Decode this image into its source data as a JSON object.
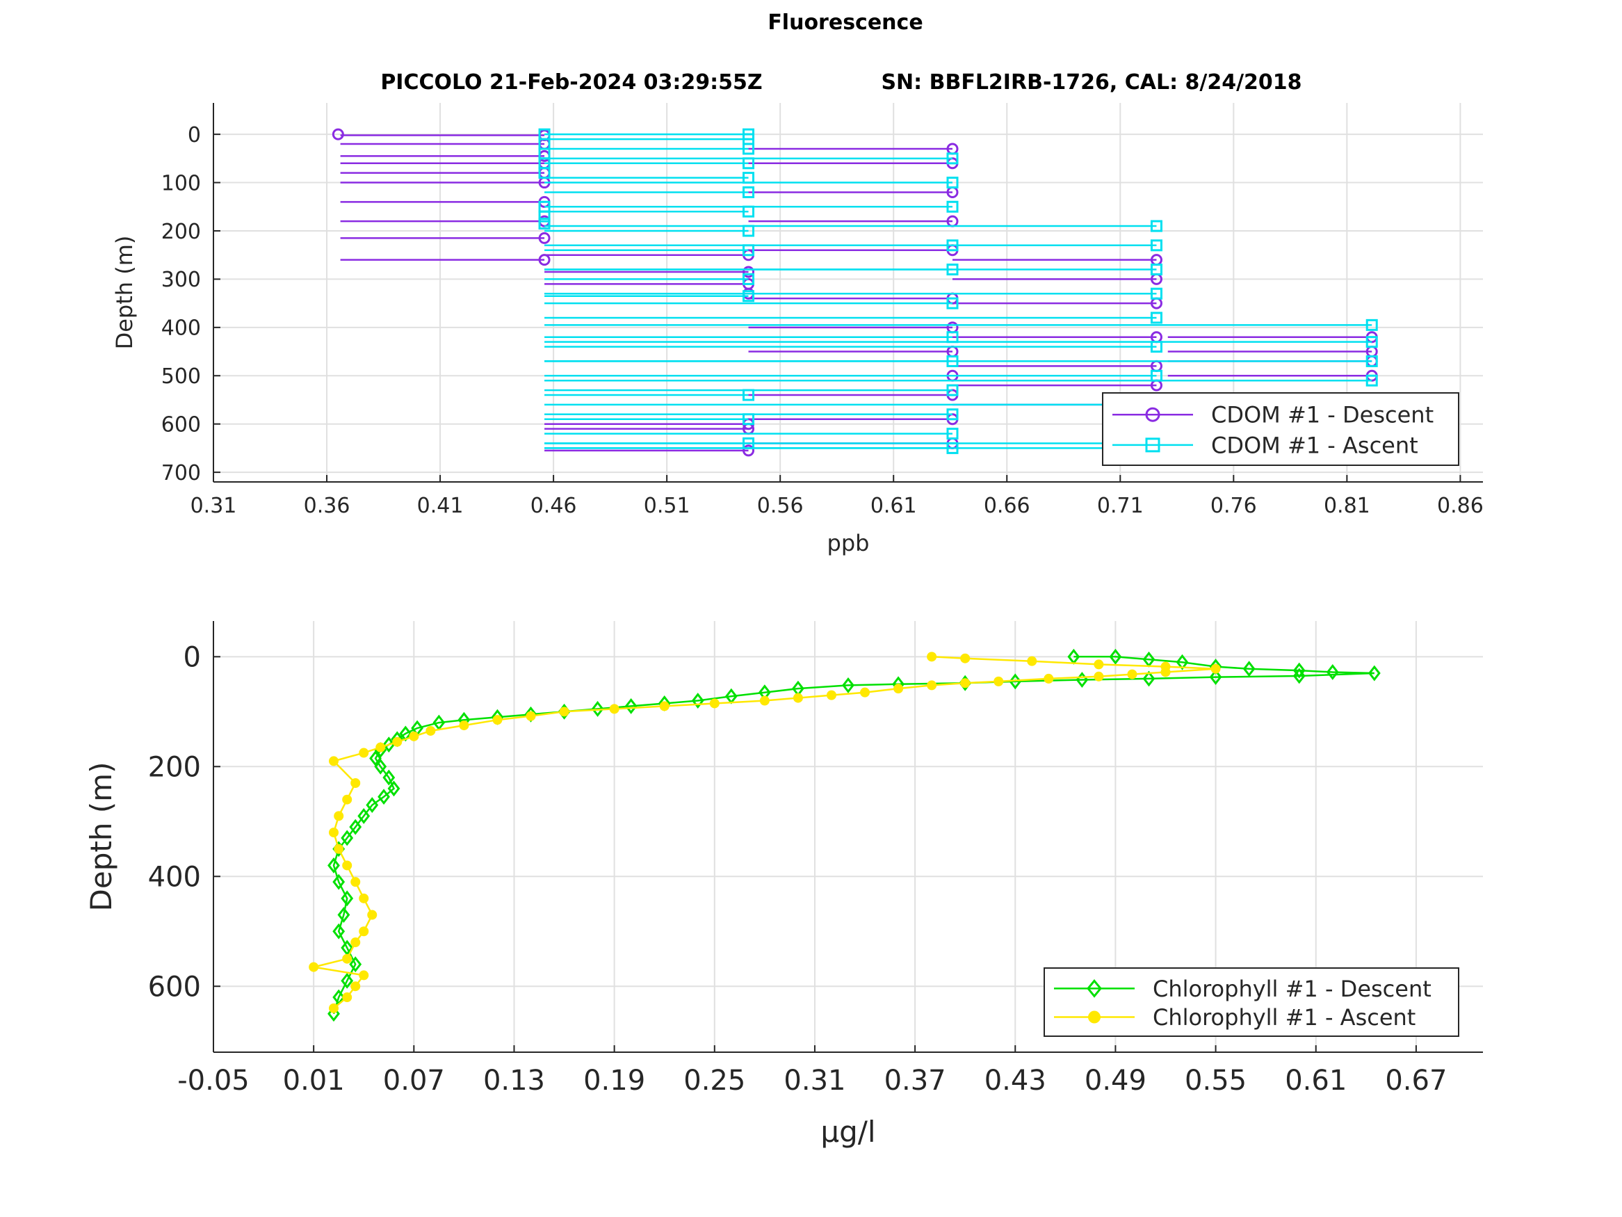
{
  "figure": {
    "title": "Fluorescence",
    "subtitle_left": "PICCOLO 21-Feb-2024 03:29:55Z",
    "subtitle_right": "SN: BBFL2IRB-1726, CAL: 8/24/2018"
  },
  "chart_data": [
    {
      "type": "line",
      "xlabel": "ppb",
      "ylabel": "Depth (m)",
      "xlim": [
        0.31,
        0.87
      ],
      "ylim": [
        -65,
        720
      ],
      "y_reversed": true,
      "xticks": [
        0.31,
        0.36,
        0.41,
        0.46,
        0.51,
        0.56,
        0.61,
        0.66,
        0.71,
        0.76,
        0.81,
        0.86
      ],
      "xtick_labels": [
        "0.31",
        "0.36",
        "0.41",
        "0.46",
        "0.51",
        "0.56",
        "0.61",
        "0.66",
        "0.71",
        "0.76",
        "0.81",
        "0.86"
      ],
      "yticks": [
        0,
        100,
        200,
        300,
        400,
        500,
        600,
        700
      ],
      "ytick_labels": [
        "0",
        "100",
        "200",
        "300",
        "400",
        "500",
        "600",
        "700"
      ],
      "grid": true,
      "legend_position": "bottom-right",
      "step_plot": true,
      "series": [
        {
          "name": "CDOM #1 - Descent",
          "color": "#8a2be2",
          "marker": "circle",
          "points": [
            [
              0.365,
              0
            ],
            [
              0.456,
              2
            ],
            [
              0.456,
              20
            ],
            [
              0.456,
              45
            ],
            [
              0.456,
              60
            ],
            [
              0.456,
              80
            ],
            [
              0.456,
              100
            ],
            [
              0.456,
              140
            ],
            [
              0.456,
              180
            ],
            [
              0.456,
              215
            ],
            [
              0.456,
              260
            ],
            [
              0.546,
              250
            ],
            [
              0.546,
              285
            ],
            [
              0.546,
              310
            ],
            [
              0.546,
              330
            ],
            [
              0.636,
              30
            ],
            [
              0.636,
              60
            ],
            [
              0.636,
              120
            ],
            [
              0.636,
              180
            ],
            [
              0.636,
              240
            ],
            [
              0.636,
              340
            ],
            [
              0.636,
              400
            ],
            [
              0.636,
              450
            ],
            [
              0.636,
              500
            ],
            [
              0.636,
              540
            ],
            [
              0.636,
              590
            ],
            [
              0.636,
              640
            ],
            [
              0.726,
              260
            ],
            [
              0.726,
              300
            ],
            [
              0.726,
              350
            ],
            [
              0.726,
              420
            ],
            [
              0.726,
              480
            ],
            [
              0.726,
              520
            ],
            [
              0.726,
              560
            ],
            [
              0.821,
              420
            ],
            [
              0.821,
              450
            ],
            [
              0.821,
              470
            ],
            [
              0.821,
              500
            ],
            [
              0.821,
              580
            ],
            [
              0.821,
              620
            ],
            [
              0.546,
              600
            ],
            [
              0.546,
              610
            ],
            [
              0.546,
              655
            ]
          ]
        },
        {
          "name": "CDOM #1 - Ascent",
          "color": "#00e0f0",
          "marker": "square",
          "points": [
            [
              0.456,
              0
            ],
            [
              0.456,
              20
            ],
            [
              0.456,
              40
            ],
            [
              0.456,
              60
            ],
            [
              0.456,
              80
            ],
            [
              0.456,
              150
            ],
            [
              0.456,
              170
            ],
            [
              0.456,
              185
            ],
            [
              0.546,
              0
            ],
            [
              0.546,
              10
            ],
            [
              0.546,
              30
            ],
            [
              0.546,
              60
            ],
            [
              0.546,
              90
            ],
            [
              0.546,
              120
            ],
            [
              0.546,
              160
            ],
            [
              0.546,
              200
            ],
            [
              0.546,
              240
            ],
            [
              0.546,
              300
            ],
            [
              0.546,
              335
            ],
            [
              0.546,
              540
            ],
            [
              0.546,
              590
            ],
            [
              0.546,
              640
            ],
            [
              0.636,
              50
            ],
            [
              0.636,
              100
            ],
            [
              0.636,
              150
            ],
            [
              0.636,
              230
            ],
            [
              0.636,
              280
            ],
            [
              0.636,
              350
            ],
            [
              0.636,
              420
            ],
            [
              0.636,
              470
            ],
            [
              0.636,
              530
            ],
            [
              0.636,
              580
            ],
            [
              0.636,
              620
            ],
            [
              0.636,
              650
            ],
            [
              0.726,
              190
            ],
            [
              0.726,
              230
            ],
            [
              0.726,
              280
            ],
            [
              0.726,
              330
            ],
            [
              0.726,
              380
            ],
            [
              0.726,
              440
            ],
            [
              0.726,
              500
            ],
            [
              0.726,
              560
            ],
            [
              0.726,
              640
            ],
            [
              0.821,
              395
            ],
            [
              0.821,
              430
            ],
            [
              0.821,
              470
            ],
            [
              0.821,
              510
            ],
            [
              0.821,
              650
            ]
          ]
        }
      ]
    },
    {
      "type": "line",
      "xlabel": "μg/l",
      "ylabel": "Depth (m)",
      "xlim": [
        -0.05,
        0.71
      ],
      "ylim": [
        -65,
        720
      ],
      "y_reversed": true,
      "xticks": [
        -0.05,
        0.01,
        0.07,
        0.13,
        0.19,
        0.25,
        0.31,
        0.37,
        0.43,
        0.49,
        0.55,
        0.61,
        0.67
      ],
      "xtick_labels": [
        "-0.05",
        "0.01",
        "0.07",
        "0.13",
        "0.19",
        "0.25",
        "0.31",
        "0.37",
        "0.43",
        "0.49",
        "0.55",
        "0.61",
        "0.67"
      ],
      "yticks": [
        0,
        200,
        400,
        600
      ],
      "ytick_labels": [
        "0",
        "200",
        "400",
        "600"
      ],
      "grid": true,
      "legend_position": "bottom-right",
      "series": [
        {
          "name": "Chlorophyll #1 - Descent",
          "color": "#00e000",
          "marker": "diamond",
          "points": [
            [
              0.465,
              0
            ],
            [
              0.49,
              0
            ],
            [
              0.51,
              5
            ],
            [
              0.53,
              10
            ],
            [
              0.55,
              18
            ],
            [
              0.57,
              22
            ],
            [
              0.6,
              25
            ],
            [
              0.62,
              28
            ],
            [
              0.645,
              30
            ],
            [
              0.6,
              35
            ],
            [
              0.55,
              37
            ],
            [
              0.51,
              40
            ],
            [
              0.47,
              42
            ],
            [
              0.43,
              45
            ],
            [
              0.4,
              48
            ],
            [
              0.36,
              50
            ],
            [
              0.33,
              52
            ],
            [
              0.3,
              58
            ],
            [
              0.28,
              65
            ],
            [
              0.26,
              72
            ],
            [
              0.24,
              80
            ],
            [
              0.22,
              85
            ],
            [
              0.2,
              90
            ],
            [
              0.18,
              95
            ],
            [
              0.16,
              100
            ],
            [
              0.14,
              105
            ],
            [
              0.12,
              110
            ],
            [
              0.1,
              115
            ],
            [
              0.085,
              120
            ],
            [
              0.072,
              130
            ],
            [
              0.065,
              140
            ],
            [
              0.06,
              150
            ],
            [
              0.055,
              160
            ],
            [
              0.05,
              170
            ],
            [
              0.047,
              185
            ],
            [
              0.05,
              200
            ],
            [
              0.055,
              220
            ],
            [
              0.058,
              240
            ],
            [
              0.052,
              255
            ],
            [
              0.045,
              270
            ],
            [
              0.04,
              290
            ],
            [
              0.035,
              310
            ],
            [
              0.03,
              330
            ],
            [
              0.025,
              350
            ],
            [
              0.022,
              380
            ],
            [
              0.025,
              410
            ],
            [
              0.03,
              440
            ],
            [
              0.028,
              470
            ],
            [
              0.025,
              500
            ],
            [
              0.03,
              530
            ],
            [
              0.035,
              560
            ],
            [
              0.03,
              590
            ],
            [
              0.025,
              620
            ],
            [
              0.022,
              650
            ]
          ]
        },
        {
          "name": "Chlorophyll #1 - Ascent",
          "color": "#ffe800",
          "marker": "asterisk",
          "points": [
            [
              0.022,
              640
            ],
            [
              0.03,
              620
            ],
            [
              0.035,
              600
            ],
            [
              0.04,
              580
            ],
            [
              0.01,
              565
            ],
            [
              0.03,
              550
            ],
            [
              0.035,
              520
            ],
            [
              0.04,
              500
            ],
            [
              0.045,
              470
            ],
            [
              0.04,
              440
            ],
            [
              0.035,
              410
            ],
            [
              0.03,
              380
            ],
            [
              0.025,
              350
            ],
            [
              0.022,
              320
            ],
            [
              0.025,
              290
            ],
            [
              0.03,
              260
            ],
            [
              0.035,
              230
            ],
            [
              0.022,
              190
            ],
            [
              0.04,
              175
            ],
            [
              0.05,
              165
            ],
            [
              0.06,
              155
            ],
            [
              0.07,
              145
            ],
            [
              0.08,
              135
            ],
            [
              0.1,
              125
            ],
            [
              0.12,
              115
            ],
            [
              0.14,
              108
            ],
            [
              0.16,
              100
            ],
            [
              0.19,
              95
            ],
            [
              0.22,
              90
            ],
            [
              0.25,
              85
            ],
            [
              0.28,
              80
            ],
            [
              0.3,
              75
            ],
            [
              0.32,
              70
            ],
            [
              0.34,
              65
            ],
            [
              0.36,
              58
            ],
            [
              0.38,
              52
            ],
            [
              0.4,
              48
            ],
            [
              0.42,
              45
            ],
            [
              0.45,
              40
            ],
            [
              0.48,
              36
            ],
            [
              0.5,
              32
            ],
            [
              0.52,
              28
            ],
            [
              0.55,
              22
            ],
            [
              0.52,
              18
            ],
            [
              0.48,
              14
            ],
            [
              0.44,
              8
            ],
            [
              0.4,
              3
            ],
            [
              0.38,
              0
            ]
          ]
        }
      ]
    }
  ]
}
